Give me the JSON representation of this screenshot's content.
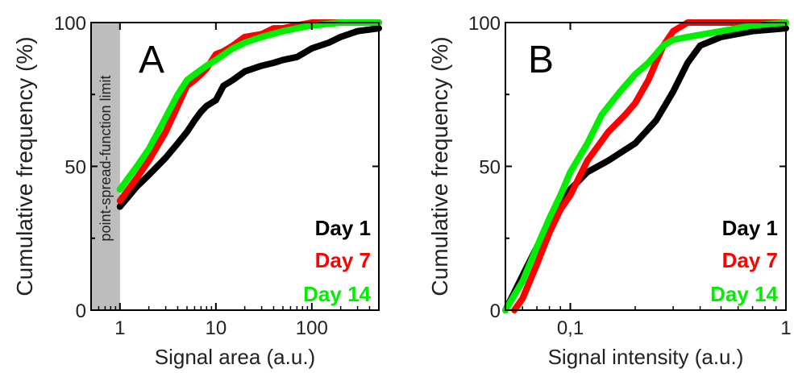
{
  "chart_data": [
    {
      "type": "line",
      "panel_label": "A",
      "xlabel": "Signal area (a.u.)",
      "ylabel": "Cumulative frequency (%)",
      "x_scale": "log",
      "xlim": [
        0.5,
        500
      ],
      "ylim": [
        0,
        100
      ],
      "x_ticks": [
        "1",
        "10",
        "100"
      ],
      "y_ticks": [
        "0",
        "50",
        "100"
      ],
      "shaded_band": {
        "x_range": [
          0.5,
          1
        ],
        "label": "point-spread-function limit",
        "color": "#bdbdbd"
      },
      "legend_position": "bottom-right",
      "series": [
        {
          "name": "Day 1",
          "color": "#000000",
          "points": [
            [
              1,
              36
            ],
            [
              1.5,
              43
            ],
            [
              2,
              47
            ],
            [
              3,
              53
            ],
            [
              4,
              58
            ],
            [
              5,
              62
            ],
            [
              6,
              66
            ],
            [
              7,
              69
            ],
            [
              8,
              71
            ],
            [
              10,
              73
            ],
            [
              12,
              78
            ],
            [
              15,
              80
            ],
            [
              20,
              83
            ],
            [
              30,
              85
            ],
            [
              40,
              86
            ],
            [
              50,
              87
            ],
            [
              70,
              88
            ],
            [
              100,
              91
            ],
            [
              150,
              93
            ],
            [
              200,
              95
            ],
            [
              300,
              97
            ],
            [
              500,
              98
            ]
          ]
        },
        {
          "name": "Day 7",
          "color": "#ff0000",
          "points": [
            [
              1,
              38
            ],
            [
              1.5,
              46
            ],
            [
              2,
              52
            ],
            [
              3,
              62
            ],
            [
              4,
              71
            ],
            [
              5,
              78
            ],
            [
              6,
              80
            ],
            [
              7,
              82
            ],
            [
              8,
              84
            ],
            [
              10,
              89
            ],
            [
              12,
              90
            ],
            [
              15,
              92
            ],
            [
              20,
              95
            ],
            [
              30,
              96
            ],
            [
              40,
              98
            ],
            [
              50,
              98
            ],
            [
              70,
              99
            ],
            [
              100,
              100
            ],
            [
              200,
              100
            ],
            [
              500,
              100
            ]
          ]
        },
        {
          "name": "Day 14",
          "color": "#00ee00",
          "points": [
            [
              1,
              42
            ],
            [
              1.5,
              50
            ],
            [
              2,
              56
            ],
            [
              3,
              67
            ],
            [
              4,
              75
            ],
            [
              5,
              80
            ],
            [
              6,
              82
            ],
            [
              8,
              85
            ],
            [
              10,
              87
            ],
            [
              15,
              91
            ],
            [
              20,
              93
            ],
            [
              30,
              95
            ],
            [
              50,
              97
            ],
            [
              70,
              98
            ],
            [
              100,
              99
            ],
            [
              200,
              100
            ],
            [
              500,
              100
            ]
          ]
        }
      ]
    },
    {
      "type": "line",
      "panel_label": "B",
      "xlabel": "Signal intensity (a.u.)",
      "ylabel": "Cumulative frequency (%)",
      "x_scale": "log",
      "xlim": [
        0.05,
        1
      ],
      "ylim": [
        0,
        100
      ],
      "x_ticks": [
        "0,1",
        "1"
      ],
      "y_ticks": [
        "0",
        "50",
        "100"
      ],
      "legend_position": "bottom-right",
      "series": [
        {
          "name": "Day 1",
          "color": "#000000",
          "points": [
            [
              0.05,
              0
            ],
            [
              0.06,
              12
            ],
            [
              0.07,
              22
            ],
            [
              0.08,
              30
            ],
            [
              0.09,
              36
            ],
            [
              0.1,
              42
            ],
            [
              0.12,
              48
            ],
            [
              0.15,
              52
            ],
            [
              0.2,
              58
            ],
            [
              0.25,
              66
            ],
            [
              0.3,
              76
            ],
            [
              0.35,
              86
            ],
            [
              0.4,
              92
            ],
            [
              0.5,
              95
            ],
            [
              0.7,
              97
            ],
            [
              1,
              98
            ]
          ]
        },
        {
          "name": "Day 7",
          "color": "#ff0000",
          "points": [
            [
              0.055,
              0
            ],
            [
              0.06,
              4
            ],
            [
              0.07,
              16
            ],
            [
              0.08,
              27
            ],
            [
              0.09,
              35
            ],
            [
              0.1,
              40
            ],
            [
              0.12,
              52
            ],
            [
              0.15,
              62
            ],
            [
              0.18,
              68
            ],
            [
              0.2,
              72
            ],
            [
              0.23,
              80
            ],
            [
              0.27,
              92
            ],
            [
              0.3,
              97
            ],
            [
              0.35,
              100
            ],
            [
              0.5,
              100
            ],
            [
              1,
              100
            ]
          ]
        },
        {
          "name": "Day 14",
          "color": "#00ee00",
          "points": [
            [
              0.05,
              0
            ],
            [
              0.06,
              10
            ],
            [
              0.07,
              22
            ],
            [
              0.08,
              32
            ],
            [
              0.09,
              40
            ],
            [
              0.1,
              48
            ],
            [
              0.12,
              58
            ],
            [
              0.14,
              68
            ],
            [
              0.17,
              76
            ],
            [
              0.2,
              82
            ],
            [
              0.23,
              86
            ],
            [
              0.27,
              92
            ],
            [
              0.3,
              94
            ],
            [
              0.35,
              95
            ],
            [
              0.5,
              97
            ],
            [
              0.7,
              99
            ],
            [
              1,
              100
            ]
          ]
        }
      ]
    }
  ]
}
